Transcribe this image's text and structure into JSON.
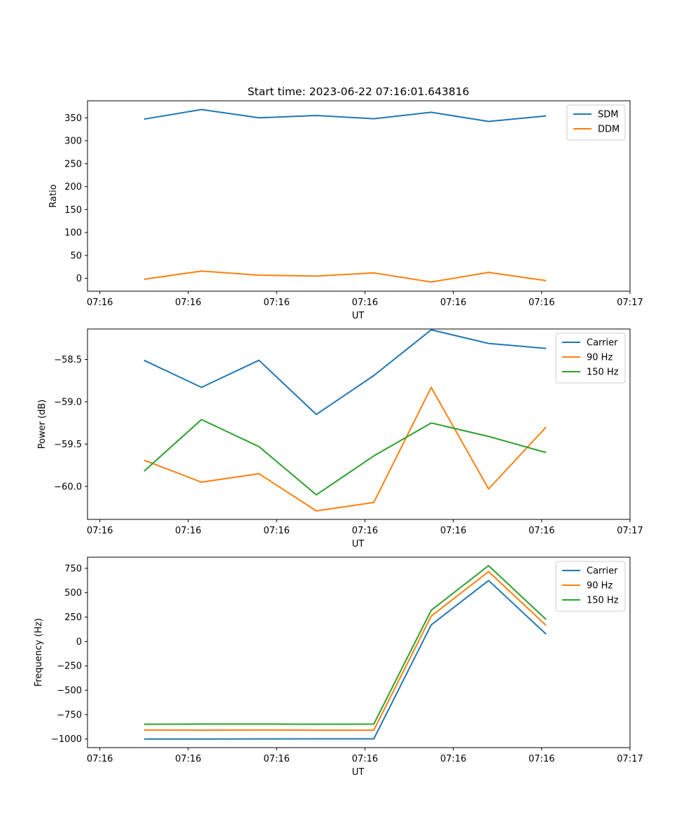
{
  "figure_title": "Start time: 2023-06-22 07:16:01.643816",
  "chart_data": [
    {
      "type": "line",
      "xlabel": "UT",
      "ylabel": "Ratio",
      "xtick_labels": [
        "07:16",
        "07:16",
        "07:16",
        "07:16",
        "07:16",
        "07:16",
        "07:17"
      ],
      "x": [
        0.5,
        1.15,
        1.8,
        2.45,
        3.1,
        3.75,
        4.4,
        5.05
      ],
      "xlim": [
        -0.14,
        6.0
      ],
      "ylim": [
        -28,
        387
      ],
      "yticks": [
        0,
        50,
        100,
        150,
        200,
        250,
        300,
        350
      ],
      "legend": "top-right",
      "series": [
        {
          "name": "SDM",
          "color": "#1f77b4",
          "values": [
            347,
            368,
            350,
            355,
            348,
            362,
            342,
            354
          ]
        },
        {
          "name": "DDM",
          "color": "#ff7f0e",
          "values": [
            -2,
            16,
            7,
            5,
            12,
            -8,
            13,
            -5
          ]
        }
      ]
    },
    {
      "type": "line",
      "xlabel": "UT",
      "ylabel": "Power (dB)",
      "xtick_labels": [
        "07:16",
        "07:16",
        "07:16",
        "07:16",
        "07:16",
        "07:16",
        "07:17"
      ],
      "x": [
        0.5,
        1.15,
        1.8,
        2.45,
        3.1,
        3.75,
        4.4,
        5.05
      ],
      "xlim": [
        -0.14,
        6.0
      ],
      "ylim": [
        -60.39,
        -58.14
      ],
      "yticks": [
        -60.0,
        -59.5,
        -59.0,
        -58.5
      ],
      "ytick_labels": [
        "−60.0",
        "−59.5",
        "−59.0",
        "−58.5"
      ],
      "legend": "top-right",
      "series": [
        {
          "name": "Carrier",
          "color": "#1f77b4",
          "values": [
            -58.51,
            -58.83,
            -58.51,
            -59.15,
            -58.69,
            -58.15,
            -58.31,
            -58.37
          ]
        },
        {
          "name": "90 Hz",
          "color": "#ff7f0e",
          "values": [
            -59.69,
            -59.95,
            -59.85,
            -60.29,
            -60.19,
            -58.83,
            -60.03,
            -59.3
          ]
        },
        {
          "name": "150 Hz",
          "color": "#2ca02c",
          "values": [
            -59.82,
            -59.21,
            -59.53,
            -60.1,
            -59.64,
            -59.25,
            -59.41,
            -59.6
          ]
        }
      ]
    },
    {
      "type": "line",
      "xlabel": "UT",
      "ylabel": "Frequency (Hz)",
      "xtick_labels": [
        "07:16",
        "07:16",
        "07:16",
        "07:16",
        "07:16",
        "07:16",
        "07:17"
      ],
      "x": [
        0.5,
        1.15,
        1.8,
        2.45,
        3.1,
        3.75,
        4.4,
        5.05
      ],
      "xlim": [
        -0.14,
        6.0
      ],
      "ylim": [
        -1088,
        864
      ],
      "yticks": [
        -1000,
        -750,
        -500,
        -250,
        0,
        250,
        500,
        750
      ],
      "ytick_labels": [
        "−1000",
        "−750",
        "−500",
        "−250",
        "0",
        "250",
        "500",
        "750"
      ],
      "legend": "top-right",
      "series": [
        {
          "name": "Carrier",
          "color": "#1f77b4",
          "values": [
            -1000,
            -1000,
            -999,
            -998,
            -998,
            170,
            625,
            75
          ]
        },
        {
          "name": "90 Hz",
          "color": "#ff7f0e",
          "values": [
            -908,
            -909,
            -908,
            -909,
            -909,
            260,
            717,
            165
          ]
        },
        {
          "name": "150 Hz",
          "color": "#2ca02c",
          "values": [
            -848,
            -847,
            -847,
            -848,
            -847,
            320,
            777,
            225
          ]
        }
      ]
    }
  ]
}
